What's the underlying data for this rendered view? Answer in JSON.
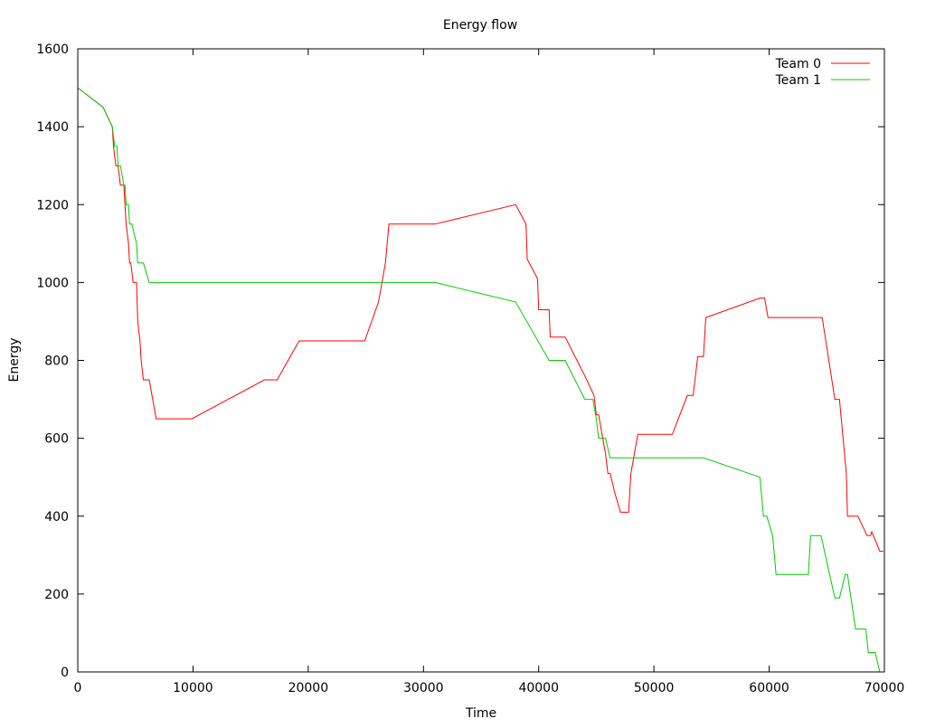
{
  "chart_data": {
    "type": "line",
    "title": "Energy flow",
    "xlabel": "Time",
    "ylabel": "Energy",
    "xlim": [
      0,
      70000
    ],
    "ylim": [
      0,
      1600
    ],
    "xticks": [
      0,
      10000,
      20000,
      30000,
      40000,
      50000,
      60000,
      70000
    ],
    "yticks": [
      0,
      200,
      400,
      600,
      800,
      1000,
      1200,
      1400,
      1600
    ],
    "grid": false,
    "legend": "top-right",
    "series": [
      {
        "name": "Team 0",
        "color": "#ff0000",
        "points": [
          [
            0,
            1500
          ],
          [
            2200,
            1450
          ],
          [
            3000,
            1400
          ],
          [
            3100,
            1350
          ],
          [
            3300,
            1300
          ],
          [
            3500,
            1300
          ],
          [
            3700,
            1250
          ],
          [
            4000,
            1250
          ],
          [
            4100,
            1200
          ],
          [
            4200,
            1150
          ],
          [
            4400,
            1100
          ],
          [
            4500,
            1050
          ],
          [
            4600,
            1050
          ],
          [
            4800,
            1000
          ],
          [
            5100,
            1000
          ],
          [
            5200,
            900
          ],
          [
            5400,
            850
          ],
          [
            5500,
            800
          ],
          [
            5700,
            750
          ],
          [
            6200,
            750
          ],
          [
            6800,
            650
          ],
          [
            9900,
            650
          ],
          [
            16200,
            750
          ],
          [
            17300,
            750
          ],
          [
            19200,
            850
          ],
          [
            24900,
            850
          ],
          [
            26100,
            950
          ],
          [
            26700,
            1050
          ],
          [
            27000,
            1150
          ],
          [
            31000,
            1150
          ],
          [
            38000,
            1200
          ],
          [
            38900,
            1150
          ],
          [
            39000,
            1060
          ],
          [
            39900,
            1010
          ],
          [
            40000,
            930
          ],
          [
            40900,
            930
          ],
          [
            41000,
            860
          ],
          [
            42300,
            860
          ],
          [
            44000,
            760
          ],
          [
            44800,
            710
          ],
          [
            45000,
            660
          ],
          [
            45200,
            660
          ],
          [
            45800,
            560
          ],
          [
            46000,
            510
          ],
          [
            46200,
            510
          ],
          [
            46600,
            460
          ],
          [
            47100,
            410
          ],
          [
            47800,
            410
          ],
          [
            48000,
            510
          ],
          [
            48600,
            610
          ],
          [
            51600,
            610
          ],
          [
            52900,
            710
          ],
          [
            53400,
            710
          ],
          [
            53800,
            810
          ],
          [
            54300,
            810
          ],
          [
            54500,
            910
          ],
          [
            59200,
            960
          ],
          [
            59600,
            960
          ],
          [
            59900,
            910
          ],
          [
            64600,
            910
          ],
          [
            65700,
            700
          ],
          [
            66100,
            700
          ],
          [
            66700,
            510
          ],
          [
            66800,
            400
          ],
          [
            67700,
            400
          ],
          [
            68500,
            350
          ],
          [
            68800,
            350
          ],
          [
            68900,
            360
          ],
          [
            69600,
            310
          ],
          [
            69900,
            310
          ]
        ]
      },
      {
        "name": "Team 1",
        "color": "#00cc00",
        "points": [
          [
            0,
            1500
          ],
          [
            2200,
            1450
          ],
          [
            3000,
            1400
          ],
          [
            3200,
            1350
          ],
          [
            3400,
            1350
          ],
          [
            3500,
            1300
          ],
          [
            3700,
            1300
          ],
          [
            4000,
            1250
          ],
          [
            4100,
            1250
          ],
          [
            4200,
            1200
          ],
          [
            4400,
            1200
          ],
          [
            4500,
            1150
          ],
          [
            4700,
            1150
          ],
          [
            5100,
            1100
          ],
          [
            5200,
            1050
          ],
          [
            5700,
            1050
          ],
          [
            6200,
            1000
          ],
          [
            31000,
            1000
          ],
          [
            38000,
            950
          ],
          [
            40900,
            800
          ],
          [
            42300,
            800
          ],
          [
            44000,
            700
          ],
          [
            44700,
            700
          ],
          [
            45000,
            650
          ],
          [
            45200,
            600
          ],
          [
            45800,
            600
          ],
          [
            46200,
            550
          ],
          [
            54300,
            550
          ],
          [
            59200,
            500
          ],
          [
            59500,
            400
          ],
          [
            59800,
            400
          ],
          [
            60300,
            350
          ],
          [
            60600,
            250
          ],
          [
            63400,
            250
          ],
          [
            63600,
            350
          ],
          [
            64500,
            350
          ],
          [
            65700,
            190
          ],
          [
            66100,
            190
          ],
          [
            66600,
            250
          ],
          [
            66800,
            250
          ],
          [
            67500,
            110
          ],
          [
            68400,
            110
          ],
          [
            68600,
            50
          ],
          [
            69200,
            50
          ],
          [
            69600,
            0
          ]
        ]
      }
    ]
  }
}
